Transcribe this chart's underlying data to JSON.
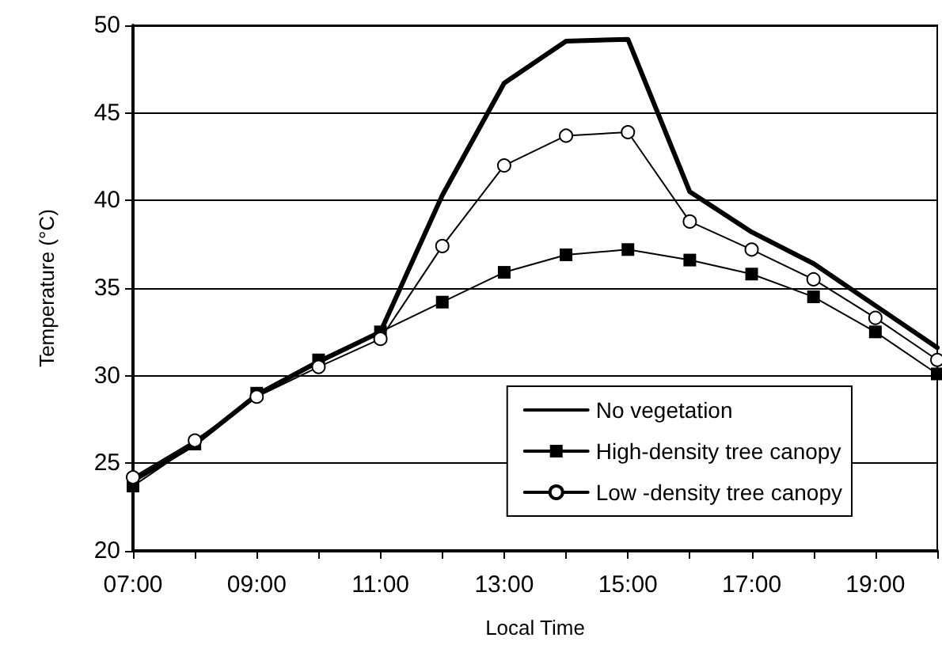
{
  "chart_data": {
    "type": "line",
    "xlabel": "Local Time",
    "ylabel": "Temperature (°C)",
    "x": [
      7,
      8,
      9,
      10,
      11,
      12,
      13,
      14,
      15,
      16,
      17,
      18,
      19,
      20
    ],
    "series": [
      {
        "name": "No vegetation",
        "color": "#000000",
        "marker": "none",
        "values": [
          24.0,
          26.1,
          28.9,
          30.8,
          32.5,
          40.3,
          46.7,
          49.1,
          49.2,
          40.5,
          38.2,
          36.4,
          34.0,
          31.6
        ]
      },
      {
        "name": "High-density tree canopy",
        "color": "#000000",
        "marker": "square",
        "values": [
          23.7,
          26.1,
          29.0,
          30.9,
          32.5,
          34.2,
          35.9,
          36.9,
          37.2,
          36.6,
          35.8,
          34.5,
          32.5,
          30.1
        ]
      },
      {
        "name": "Low -density tree canopy",
        "color": "#000000",
        "marker": "circle",
        "values": [
          24.2,
          26.3,
          28.8,
          30.5,
          32.1,
          37.4,
          42.0,
          43.7,
          43.9,
          38.8,
          37.2,
          35.5,
          33.3,
          30.9
        ]
      }
    ],
    "xlim": [
      7,
      20
    ],
    "xticks": [
      {
        "value": 7,
        "label": "07:00"
      },
      {
        "value": 8,
        "label": null
      },
      {
        "value": 9,
        "label": "09:00"
      },
      {
        "value": 10,
        "label": null
      },
      {
        "value": 11,
        "label": "11:00"
      },
      {
        "value": 12,
        "label": null
      },
      {
        "value": 13,
        "label": "13:00"
      },
      {
        "value": 14,
        "label": null
      },
      {
        "value": 15,
        "label": "15:00"
      },
      {
        "value": 16,
        "label": null
      },
      {
        "value": 17,
        "label": "17:00"
      },
      {
        "value": 18,
        "label": null
      },
      {
        "value": 19,
        "label": "19:00"
      },
      {
        "value": 20,
        "label": null
      }
    ],
    "ylim": [
      20,
      50
    ],
    "yticks": [
      20,
      25,
      30,
      35,
      40,
      45,
      50
    ],
    "grid": "y",
    "legend": "bottom right",
    "line_style": "solid"
  }
}
